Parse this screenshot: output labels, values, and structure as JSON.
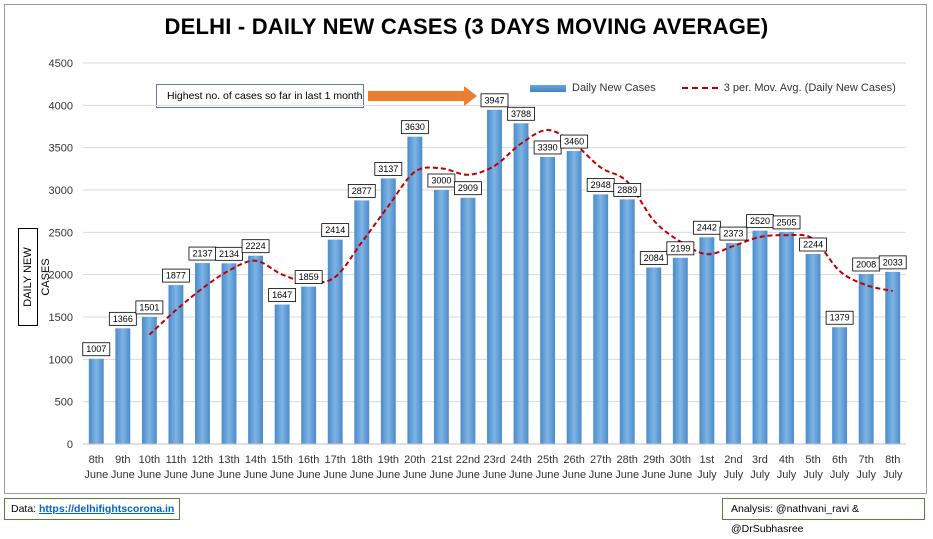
{
  "chart_data": {
    "type": "bar",
    "title": "DELHI - DAILY NEW CASES (3 DAYS MOVING AVERAGE)",
    "ylabel": "DAILY NEW CASES",
    "ylim": [
      0,
      4500
    ],
    "yticks": [
      0,
      500,
      1000,
      1500,
      2000,
      2500,
      3000,
      3500,
      4000,
      4500
    ],
    "grid": true,
    "legend_position": "top-right",
    "categories": [
      [
        "8th",
        "June"
      ],
      [
        "9th",
        "June"
      ],
      [
        "10th",
        "June"
      ],
      [
        "11th",
        "June"
      ],
      [
        "12th",
        "June"
      ],
      [
        "13th",
        "June"
      ],
      [
        "14th",
        "June"
      ],
      [
        "15th",
        "June"
      ],
      [
        "16th",
        "June"
      ],
      [
        "17th",
        "June"
      ],
      [
        "18th",
        "June"
      ],
      [
        "19th",
        "June"
      ],
      [
        "20th",
        "June"
      ],
      [
        "21st",
        "June"
      ],
      [
        "22nd",
        "June"
      ],
      [
        "23rd",
        "June"
      ],
      [
        "24th",
        "June"
      ],
      [
        "25th",
        "June"
      ],
      [
        "26th",
        "June"
      ],
      [
        "27th",
        "June"
      ],
      [
        "28th",
        "June"
      ],
      [
        "29th",
        "June"
      ],
      [
        "30th",
        "June"
      ],
      [
        "1st",
        "July"
      ],
      [
        "2nd",
        "July"
      ],
      [
        "3rd",
        "July"
      ],
      [
        "4th",
        "July"
      ],
      [
        "5th",
        "July"
      ],
      [
        "6th",
        "July"
      ],
      [
        "7th",
        "July"
      ],
      [
        "8th",
        "July"
      ]
    ],
    "series": [
      {
        "name": "Daily New Cases",
        "kind": "bar",
        "color": "#5b9bd5",
        "values": [
          1007,
          1366,
          1501,
          1877,
          2137,
          2134,
          2224,
          1647,
          1859,
          2414,
          2877,
          3137,
          3630,
          3000,
          2909,
          3947,
          3788,
          3390,
          3460,
          2948,
          2889,
          2084,
          2199,
          2442,
          2373,
          2520,
          2505,
          2244,
          1379,
          2008,
          2033
        ]
      },
      {
        "name": "3 per. Mov. Avg. (Daily New Cases)",
        "kind": "line",
        "style": "dashed",
        "color": "#c00000",
        "values": [
          null,
          null,
          1291,
          1581,
          1838,
          2049,
          2165,
          2002,
          1910,
          1973,
          2383,
          2809,
          3215,
          3256,
          3180,
          3285,
          3548,
          3708,
          3546,
          3266,
          3099,
          2640,
          2391,
          2242,
          2338,
          2445,
          2466,
          2423,
          2043,
          1877,
          1807
        ]
      }
    ],
    "annotations": {
      "callout_text": "Highest no. of cases so far in last 1 month",
      "arrow_color": "#ed7d31"
    }
  },
  "footer": {
    "data_label": "Data: ",
    "data_link": "https://delhifightscorona.in",
    "analysis": "Analysis: @nathvani_ravi & @DrSubhasree"
  }
}
